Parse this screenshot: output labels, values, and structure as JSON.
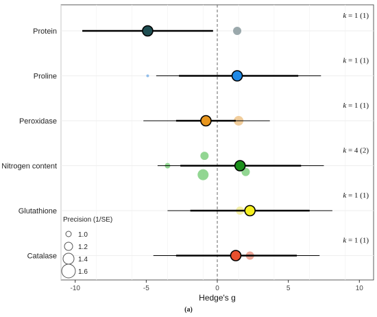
{
  "caption": "(a)",
  "chart_data": {
    "type": "forest",
    "xlabel": "Hedge's g",
    "xlim": [
      -11,
      11
    ],
    "xticks": [
      -10,
      -5,
      0,
      5,
      10
    ],
    "grid": true,
    "reference_line": 0,
    "legend": {
      "title": "Precision (1/SE)",
      "placement": "bottom-left",
      "entries": [
        "1.0",
        "1.2",
        "1.4",
        "1.6"
      ]
    },
    "rows": [
      {
        "label": "Protein",
        "k": "k = 1 (1)",
        "color": "#1f4e52",
        "estimate": -4.9,
        "thick_ci": [
          -9.5,
          -0.3
        ],
        "thin_ci": [
          -9.5,
          -0.3
        ],
        "studies": [
          {
            "x": 1.4,
            "dy": 0,
            "precision": 1.2,
            "color": "#8a9a9e"
          }
        ]
      },
      {
        "label": "Proline",
        "k": "k = 1 (1)",
        "color": "#1e88e5",
        "estimate": 1.4,
        "thick_ci": [
          -2.7,
          5.7
        ],
        "thin_ci": [
          -4.3,
          7.3
        ],
        "studies": [
          {
            "x": -4.9,
            "dy": 0,
            "precision": 0.8,
            "color": "#7fb3e8"
          }
        ]
      },
      {
        "label": "Peroxidase",
        "k": "k = 1 (1)",
        "color": "#e8961e",
        "estimate": -0.8,
        "thick_ci": [
          -2.9,
          1.3
        ],
        "thin_ci": [
          -5.2,
          3.7
        ],
        "studies": [
          {
            "x": 1.5,
            "dy": 0,
            "precision": 1.3,
            "color": "#eec48a"
          }
        ]
      },
      {
        "label": "Nitrogen content",
        "k": "k = 4 (2)",
        "color": "#1a8f1a",
        "estimate": 1.6,
        "thick_ci": [
          -2.6,
          5.9
        ],
        "thin_ci": [
          -4.2,
          7.5
        ],
        "studies": [
          {
            "x": -0.9,
            "dy": -0.22,
            "precision": 1.2,
            "color": "#7fcf7f"
          },
          {
            "x": -3.5,
            "dy": 0.0,
            "precision": 1.0,
            "color": "#7fcf7f"
          },
          {
            "x": -1.0,
            "dy": 0.2,
            "precision": 1.4,
            "color": "#7fcf7f"
          },
          {
            "x": 2.0,
            "dy": 0.14,
            "precision": 1.2,
            "color": "#7fcf7f"
          }
        ]
      },
      {
        "label": "Glutathione",
        "k": "k = 1 (1)",
        "color": "#f5ef1e",
        "estimate": 2.3,
        "thick_ci": [
          -1.9,
          6.5
        ],
        "thin_ci": [
          -3.5,
          8.1
        ],
        "studies": [
          {
            "x": 1.6,
            "dy": 0,
            "precision": 1.2,
            "color": "#f3ef99"
          }
        ]
      },
      {
        "label": "Catalase",
        "k": "k = 1 (1)",
        "color": "#e8502e",
        "estimate": 1.3,
        "thick_ci": [
          -2.9,
          5.6
        ],
        "thin_ci": [
          -4.5,
          7.2
        ],
        "studies": [
          {
            "x": 2.3,
            "dy": 0,
            "precision": 1.2,
            "color": "#ea9a8a"
          }
        ]
      }
    ]
  }
}
